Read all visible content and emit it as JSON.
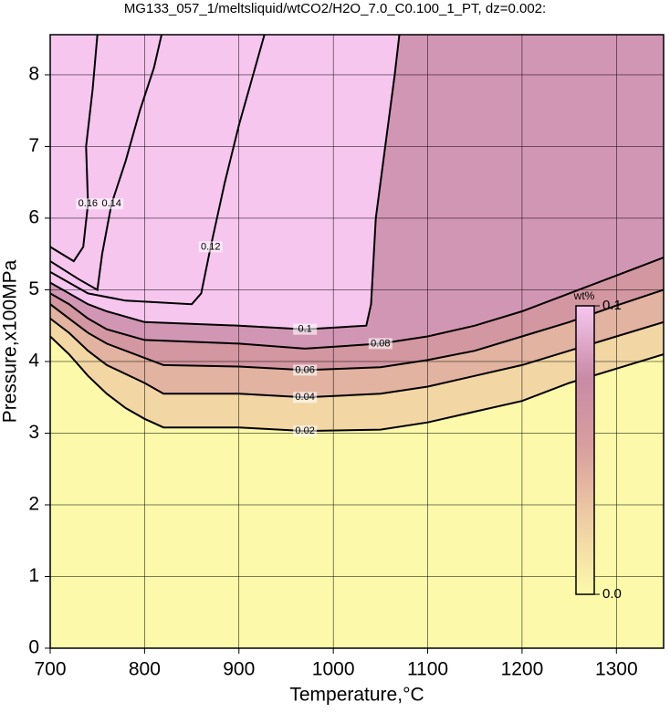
{
  "chart_data": {
    "type": "contour",
    "title": "MG133_057_1/meltsliquid/wtCO2/H2O_7.0_C0.100_1_PT, dz=0.002:",
    "x_label": "Temperature,°C",
    "y_label": "Pressure,x100MPa",
    "xlim": [
      700,
      1350
    ],
    "ylim": [
      0,
      8.56
    ],
    "xticks": [
      700,
      800,
      900,
      1000,
      1100,
      1200,
      1300
    ],
    "yticks": [
      0,
      1,
      2,
      3,
      4,
      5,
      6,
      7,
      8
    ],
    "grid": true,
    "colormap": [
      "#fcf9aa",
      "#efcfa4",
      "#d9a09e",
      "#c98aa6",
      "#f6c6ef"
    ],
    "colorbar": {
      "label": "wt%",
      "lim": [
        0,
        0.1
      ],
      "ticks": [
        {
          "value": 0,
          "label": "0.0"
        },
        0.1
      ]
    },
    "contours": [
      {
        "level": 0.02,
        "x": [
          700,
          720,
          740,
          760,
          780,
          800,
          820,
          900,
          970,
          1050,
          1100,
          1150,
          1200,
          1250,
          1300,
          1350
        ],
        "y": [
          4.35,
          4.1,
          3.8,
          3.55,
          3.35,
          3.2,
          3.08,
          3.08,
          3.03,
          3.05,
          3.15,
          3.3,
          3.45,
          3.7,
          3.9,
          4.1
        ]
      },
      {
        "level": 0.04,
        "x": [
          700,
          720,
          740,
          760,
          800,
          820,
          900,
          970,
          1050,
          1100,
          1150,
          1200,
          1250,
          1300,
          1350
        ],
        "y": [
          4.6,
          4.4,
          4.15,
          3.95,
          3.7,
          3.55,
          3.55,
          3.5,
          3.55,
          3.65,
          3.8,
          3.95,
          4.15,
          4.35,
          4.55
        ]
      },
      {
        "level": 0.06,
        "x": [
          700,
          720,
          740,
          760,
          800,
          820,
          900,
          970,
          1050,
          1100,
          1150,
          1200,
          1250,
          1300,
          1350
        ],
        "y": [
          4.8,
          4.6,
          4.4,
          4.25,
          4.05,
          3.95,
          3.93,
          3.88,
          3.92,
          4.02,
          4.15,
          4.35,
          4.55,
          4.78,
          5.0
        ]
      },
      {
        "level": 0.08,
        "x": [
          700,
          720,
          740,
          760,
          800,
          900,
          970,
          1050,
          1100,
          1150,
          1200,
          1250,
          1300,
          1350
        ],
        "y": [
          4.95,
          4.8,
          4.6,
          4.45,
          4.3,
          4.25,
          4.18,
          4.25,
          4.35,
          4.5,
          4.7,
          4.95,
          5.2,
          5.45
        ]
      },
      {
        "level": 0.1,
        "x": [
          700,
          720,
          740,
          760,
          800,
          900,
          970,
          1035,
          1040,
          1045,
          1055,
          1065,
          1070
        ],
        "y": [
          5.1,
          4.95,
          4.8,
          4.7,
          4.55,
          4.5,
          4.45,
          4.5,
          4.8,
          6,
          7,
          8,
          8.56
        ]
      },
      {
        "level": 0.12,
        "x": [
          700,
          740,
          780,
          850,
          860,
          870,
          885,
          900,
          915,
          927
        ],
        "y": [
          5.25,
          4.95,
          4.85,
          4.8,
          4.95,
          5.6,
          6.5,
          7.3,
          8,
          8.56
        ]
      },
      {
        "level": 0.14,
        "x": [
          700,
          730,
          750,
          755,
          765,
          780,
          795,
          810,
          818
        ],
        "y": [
          5.4,
          5.15,
          5.0,
          5.5,
          6.2,
          6.8,
          7.5,
          8.1,
          8.56
        ]
      },
      {
        "level": 0.16,
        "x": [
          700,
          725,
          735,
          740,
          738,
          745,
          750
        ],
        "y": [
          5.6,
          5.4,
          5.6,
          6.2,
          7,
          7.8,
          8.56
        ]
      }
    ]
  }
}
